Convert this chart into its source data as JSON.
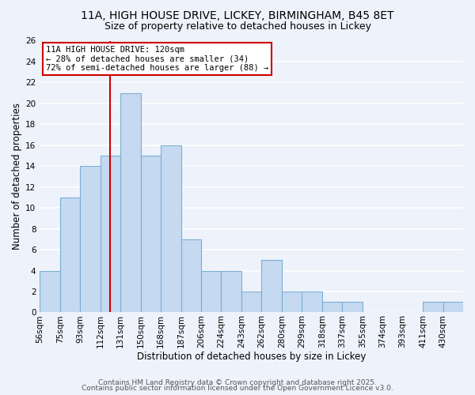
{
  "title": "11A, HIGH HOUSE DRIVE, LICKEY, BIRMINGHAM, B45 8ET",
  "subtitle": "Size of property relative to detached houses in Lickey",
  "xlabel": "Distribution of detached houses by size in Lickey",
  "ylabel": "Number of detached properties",
  "bin_labels": [
    "56sqm",
    "75sqm",
    "93sqm",
    "112sqm",
    "131sqm",
    "150sqm",
    "168sqm",
    "187sqm",
    "206sqm",
    "224sqm",
    "243sqm",
    "262sqm",
    "280sqm",
    "299sqm",
    "318sqm",
    "337sqm",
    "355sqm",
    "374sqm",
    "393sqm",
    "411sqm",
    "430sqm"
  ],
  "counts": [
    4,
    11,
    14,
    15,
    21,
    15,
    16,
    7,
    4,
    4,
    2,
    5,
    2,
    2,
    1,
    1,
    0,
    0,
    0,
    1,
    1
  ],
  "bar_color": "#c5d9f1",
  "bar_edge_color": "#7bafd4",
  "vline_bin": 3.5,
  "vline_color": "#cc0000",
  "annotation_text": "11A HIGH HOUSE DRIVE: 120sqm\n← 28% of detached houses are smaller (34)\n72% of semi-detached houses are larger (88) →",
  "annotation_box_color": "white",
  "annotation_box_edge_color": "#cc0000",
  "ylim": [
    0,
    26
  ],
  "yticks": [
    0,
    2,
    4,
    6,
    8,
    10,
    12,
    14,
    16,
    18,
    20,
    22,
    24,
    26
  ],
  "background_color": "#eef2fb",
  "grid_color": "white",
  "title_fontsize": 10,
  "subtitle_fontsize": 9,
  "axis_label_fontsize": 8.5,
  "tick_fontsize": 7.5,
  "annotation_fontsize": 7.5,
  "footer1": "Contains HM Land Registry data © Crown copyright and database right 2025.",
  "footer2": "Contains public sector information licensed under the Open Government Licence v3.0.",
  "footer_fontsize": 6.5
}
